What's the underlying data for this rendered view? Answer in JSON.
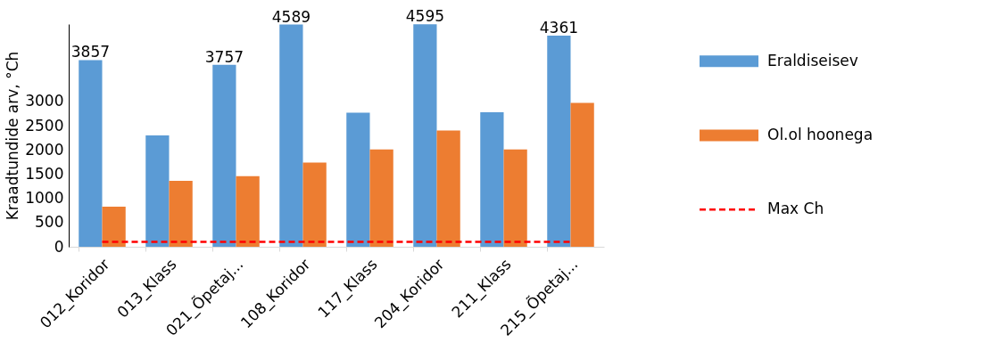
{
  "chart_data": {
    "type": "bar",
    "ylabel": "Kraadtundide arv, °Ch",
    "categories": [
      "012_Koridor",
      "013_Klass",
      "021_Õpetaj...",
      "108_Koridor",
      "117_Klass",
      "204_Koridor",
      "211_Klass",
      "215_Õpetaj..."
    ],
    "series": [
      {
        "name": "Eraldiseisev",
        "color": "#5b9bd5",
        "values": [
          3857,
          2300,
          3757,
          4589,
          2770,
          4595,
          2780,
          4361
        ],
        "value_labels": [
          "3857",
          null,
          "3757",
          "4589",
          null,
          "4595",
          null,
          "4361"
        ]
      },
      {
        "name": "Ol.ol hoonega",
        "color": "#ed7d31",
        "values": [
          830,
          1360,
          1460,
          1740,
          2010,
          2400,
          2010,
          2970
        ]
      },
      {
        "name": "Max Ch",
        "type": "line",
        "color": "#ff0000",
        "line_style": "dashed",
        "values": [
          100,
          100,
          100,
          100,
          100,
          100,
          100,
          100
        ]
      }
    ],
    "ylim": [
      0,
      4600
    ],
    "yticks": [
      0,
      500,
      1000,
      1500,
      2000,
      2500,
      3000
    ],
    "grid": false,
    "legend": "right"
  }
}
